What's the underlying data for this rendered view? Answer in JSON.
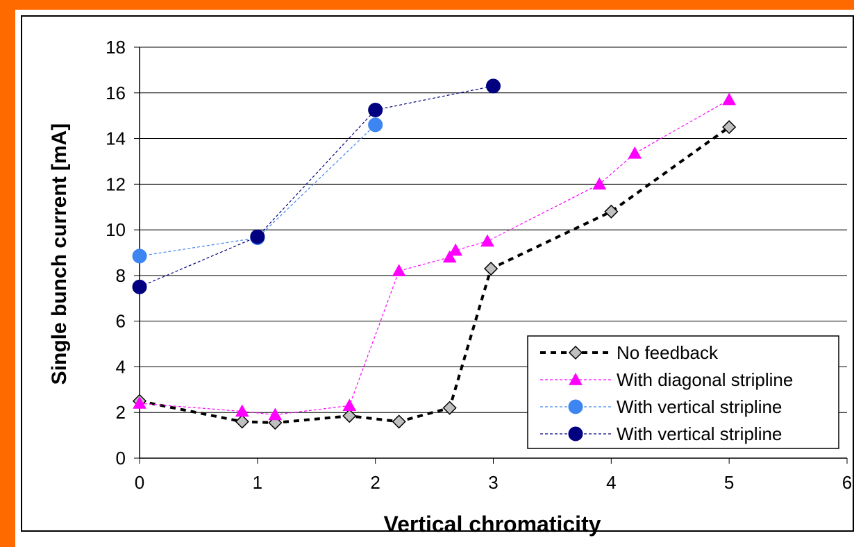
{
  "chart_data": {
    "type": "line",
    "title": "",
    "xlabel": "Vertical chromaticity",
    "ylabel": "Single bunch current [mA]",
    "xlim": [
      0,
      6
    ],
    "ylim": [
      0,
      18
    ],
    "x_ticks": [
      "0",
      "1",
      "2",
      "3",
      "4",
      "5",
      "6"
    ],
    "y_ticks": [
      "0",
      "2",
      "4",
      "6",
      "8",
      "10",
      "12",
      "14",
      "16",
      "18"
    ],
    "grid": "horizontal",
    "legend_position": "bottom-right",
    "series": [
      {
        "name": "No feedback",
        "marker": "diamond",
        "color": "#000000",
        "marker_fill": "#c0c0c0",
        "x": [
          0,
          0.87,
          1.15,
          1.78,
          2.2,
          2.63,
          2.98,
          4.0,
          5.0
        ],
        "y": [
          2.5,
          1.6,
          1.55,
          1.85,
          1.6,
          2.2,
          8.3,
          10.8,
          14.5
        ]
      },
      {
        "name": "With diagonal stripline",
        "marker": "triangle",
        "color": "#ff00ff",
        "marker_fill": "#ff00ff",
        "x": [
          0,
          0.87,
          1.15,
          1.78,
          2.2,
          2.63,
          2.68,
          2.95,
          3.9,
          4.2,
          5.0
        ],
        "y": [
          2.4,
          2.05,
          1.9,
          2.3,
          8.2,
          8.8,
          9.1,
          9.5,
          12.0,
          13.35,
          15.7
        ]
      },
      {
        "name": "With vertical stripline",
        "marker": "circle",
        "color": "#3d85f0",
        "marker_fill": "#3d85f0",
        "x": [
          0,
          1.0,
          2.0
        ],
        "y": [
          8.85,
          9.65,
          14.6
        ]
      },
      {
        "name": "With vertical stripline",
        "marker": "circle",
        "color": "#000080",
        "marker_fill": "#000080",
        "x": [
          0,
          1.0,
          2.0,
          3.0
        ],
        "y": [
          7.5,
          9.7,
          15.25,
          16.3
        ]
      }
    ]
  }
}
